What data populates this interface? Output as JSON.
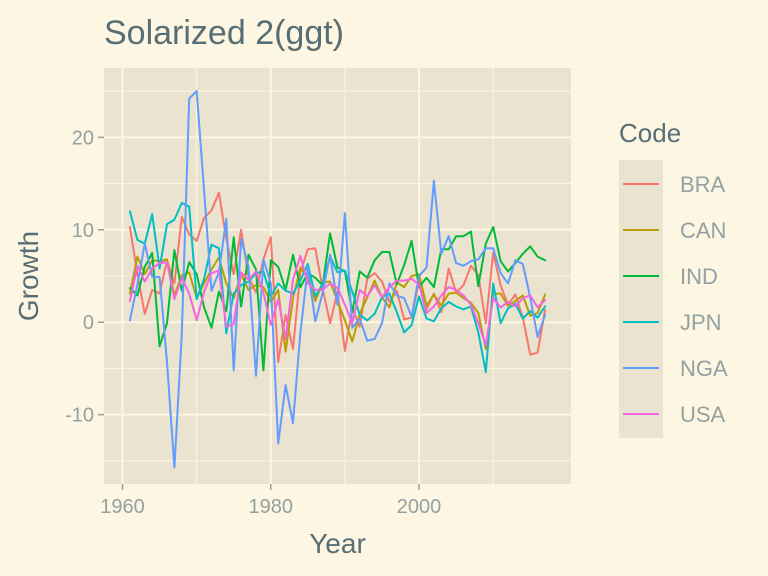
{
  "chart_data": {
    "type": "line",
    "title": "Solarized  2(ggt)",
    "xlabel": "Year",
    "ylabel": "Growth",
    "xlim": [
      1957.5,
      2020.5
    ],
    "ylim": [
      -17.5,
      27.5
    ],
    "x_ticks": [
      1960,
      1980,
      2000
    ],
    "y_ticks": [
      -10,
      0,
      10,
      20
    ],
    "grid": true,
    "legend_title": "Code",
    "legend_position": "right",
    "colors": {
      "background": "#fdf6e3",
      "panel": "#eae3cf",
      "text": "#586e75",
      "muted": "#93a1a1"
    },
    "x": [
      1961,
      1962,
      1963,
      1964,
      1965,
      1966,
      1967,
      1968,
      1969,
      1970,
      1971,
      1972,
      1973,
      1974,
      1975,
      1976,
      1977,
      1978,
      1979,
      1980,
      1981,
      1982,
      1983,
      1984,
      1985,
      1986,
      1987,
      1988,
      1989,
      1990,
      1991,
      1992,
      1993,
      1994,
      1995,
      1996,
      1997,
      1998,
      1999,
      2000,
      2001,
      2002,
      2003,
      2004,
      2005,
      2006,
      2007,
      2008,
      2009,
      2010,
      2011,
      2012,
      2013,
      2014,
      2015,
      2016,
      2017
    ],
    "series": [
      {
        "name": "BRA",
        "color": "#f8766d",
        "values": [
          10.3,
          5.2,
          0.9,
          3.5,
          3.1,
          6.7,
          4.2,
          11.4,
          9.5,
          8.8,
          11.3,
          12.1,
          14.0,
          9.0,
          5.2,
          10.0,
          4.9,
          3.2,
          6.8,
          9.2,
          -4.3,
          0.8,
          -2.9,
          5.4,
          7.9,
          8.0,
          3.6,
          -0.1,
          3.3,
          -3.1,
          1.5,
          -0.5,
          4.7,
          5.3,
          4.4,
          2.2,
          3.4,
          0.3,
          0.5,
          4.4,
          1.4,
          3.1,
          1.1,
          5.8,
          3.2,
          4.0,
          6.1,
          5.1,
          -0.1,
          7.5,
          4.0,
          1.9,
          3.0,
          0.5,
          -3.5,
          -3.3,
          1.3
        ]
      },
      {
        "name": "CAN",
        "color": "#b79f00",
        "values": [
          3.1,
          7.1,
          5.2,
          6.7,
          6.6,
          6.8,
          2.9,
          5.1,
          5.4,
          2.6,
          4.2,
          5.7,
          7.0,
          4.2,
          2.6,
          5.2,
          3.5,
          4.0,
          3.8,
          2.2,
          3.5,
          -3.2,
          2.6,
          5.9,
          4.8,
          2.3,
          4.3,
          4.4,
          2.3,
          0.2,
          -2.1,
          0.9,
          2.7,
          4.5,
          2.7,
          1.6,
          4.3,
          3.8,
          5.0,
          5.2,
          1.8,
          3.0,
          1.8,
          3.1,
          3.2,
          2.6,
          2.1,
          1.0,
          -2.9,
          3.1,
          3.1,
          1.8,
          2.3,
          2.9,
          0.7,
          1.0,
          3.0
        ]
      },
      {
        "name": "IND",
        "color": "#00ba38",
        "values": [
          3.7,
          2.9,
          6.0,
          7.5,
          -2.6,
          -0.1,
          7.8,
          3.4,
          6.5,
          5.2,
          1.6,
          -0.6,
          3.3,
          1.2,
          9.2,
          1.7,
          7.3,
          5.7,
          -5.2,
          6.7,
          6.0,
          3.5,
          7.3,
          3.8,
          5.3,
          4.8,
          4.0,
          9.6,
          5.9,
          5.5,
          1.1,
          5.5,
          4.8,
          6.7,
          7.6,
          7.6,
          4.1,
          6.2,
          8.8,
          3.8,
          4.8,
          3.8,
          7.9,
          7.9,
          9.3,
          9.3,
          9.8,
          3.9,
          8.5,
          10.3,
          6.6,
          5.5,
          6.4,
          7.4,
          8.2,
          7.1,
          6.7
        ]
      },
      {
        "name": "JPN",
        "color": "#00bfc4",
        "values": [
          12.0,
          8.9,
          8.5,
          11.7,
          5.8,
          10.6,
          11.1,
          12.9,
          12.5,
          2.5,
          4.7,
          8.4,
          8.0,
          -1.2,
          3.1,
          4.0,
          4.4,
          5.3,
          5.5,
          2.8,
          4.2,
          3.4,
          3.1,
          4.5,
          6.3,
          2.8,
          4.1,
          7.1,
          5.4,
          5.6,
          3.3,
          0.8,
          0.2,
          0.9,
          2.7,
          3.1,
          1.1,
          -1.1,
          -0.3,
          2.8,
          0.4,
          0.1,
          1.5,
          2.2,
          1.7,
          1.4,
          1.7,
          -1.1,
          -5.4,
          4.2,
          -0.1,
          1.5,
          2.0,
          0.4,
          1.2,
          0.5,
          1.7
        ]
      },
      {
        "name": "NGA",
        "color": "#619cff",
        "values": [
          0.2,
          4.1,
          8.5,
          4.9,
          4.9,
          -4.3,
          -15.7,
          -1.3,
          24.2,
          25.0,
          14.2,
          3.4,
          5.4,
          11.2,
          -5.2,
          9.0,
          6.0,
          -5.8,
          6.8,
          4.2,
          -13.1,
          -6.8,
          -10.9,
          -1.1,
          5.9,
          0.1,
          3.2,
          7.3,
          1.9,
          11.8,
          -0.6,
          0.4,
          -2.0,
          -1.8,
          -0.1,
          4.2,
          2.9,
          2.6,
          0.6,
          5.0,
          5.9,
          15.3,
          7.4,
          9.3,
          6.4,
          6.1,
          6.6,
          6.8,
          8.0,
          8.0,
          5.3,
          4.2,
          6.7,
          6.3,
          2.7,
          -1.6,
          0.8
        ]
      },
      {
        "name": "USA",
        "color": "#f564e3",
        "values": [
          2.3,
          6.1,
          4.4,
          5.8,
          6.4,
          6.5,
          2.5,
          4.8,
          3.1,
          0.2,
          3.3,
          5.3,
          5.6,
          -0.5,
          -0.2,
          5.4,
          4.6,
          5.5,
          3.2,
          -0.3,
          2.5,
          -1.8,
          4.6,
          7.2,
          4.2,
          3.5,
          3.5,
          4.2,
          3.7,
          1.9,
          -0.1,
          3.5,
          2.8,
          4.0,
          2.7,
          3.8,
          4.5,
          4.5,
          4.7,
          4.1,
          1.0,
          1.7,
          2.9,
          3.8,
          3.5,
          2.9,
          1.9,
          -0.1,
          -2.5,
          2.6,
          1.6,
          2.2,
          1.7,
          2.6,
          2.9,
          1.6,
          2.4
        ]
      }
    ]
  }
}
